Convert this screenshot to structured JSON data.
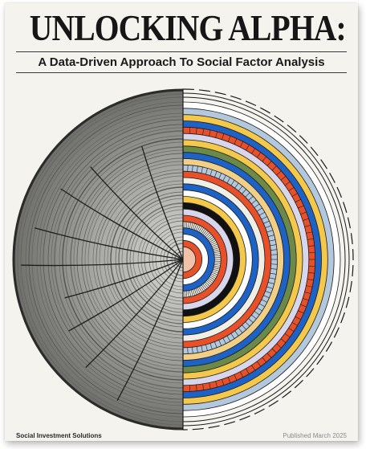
{
  "cover": {
    "title": "UNLOCKING ALPHA:",
    "subtitle": "A Data-Driven Approach To Social Factor Analysis",
    "publisher": "Social Investment Solutions",
    "published": "Published March 2025"
  },
  "artwork": {
    "left_half": "tree-rings-photo",
    "right_half": "concentric-color-rings",
    "ring_colors": [
      "#f2c2a8",
      "#e8502a",
      "#ffffff",
      "#1d62c4",
      "#f0efe6",
      "#e8502a",
      "#d8d6ea",
      "#111111",
      "#f4c84a",
      "#ffffff",
      "#1d62c4",
      "#f0efe6",
      "#e8502a",
      "#b3c8dc",
      "#f2cf86",
      "#1d62c4",
      "#6b8a4a",
      "#f4c84a",
      "#d8d6ea",
      "#e8502a",
      "#1d62c4",
      "#f4c84a",
      "#b3c8dc",
      "#ffffff"
    ]
  }
}
